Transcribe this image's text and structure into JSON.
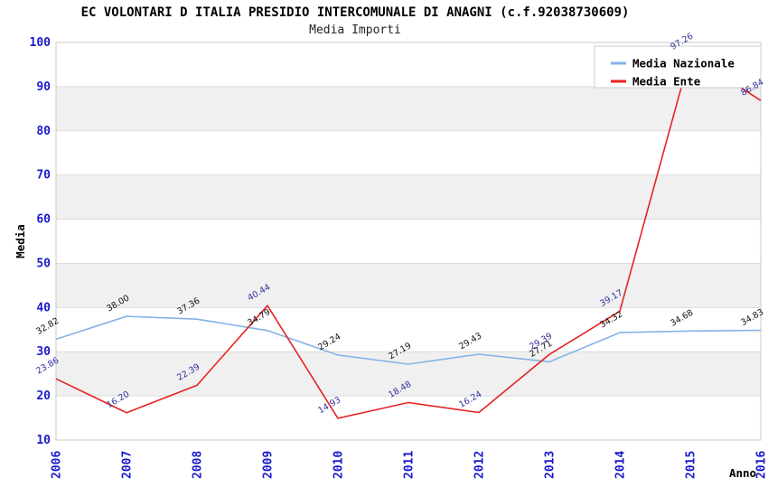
{
  "title": "EC VOLONTARI D ITALIA PRESIDIO INTERCOMUNALE DI ANAGNI (c.f.92038730609)",
  "subtitle": "Media Importi",
  "chart_data": {
    "type": "line",
    "title": "EC VOLONTARI D ITALIA PRESIDIO INTERCOMUNALE DI ANAGNI (c.f.92038730609)",
    "subtitle": "Media Importi",
    "xlabel": "Anno",
    "ylabel": "Media",
    "ylim": [
      10,
      100
    ],
    "y_ticks": [
      10,
      20,
      30,
      40,
      50,
      60,
      70,
      80,
      90,
      100
    ],
    "categories": [
      "2006",
      "2007",
      "2008",
      "2009",
      "2010",
      "2011",
      "2012",
      "2013",
      "2014",
      "2015",
      "2016"
    ],
    "series": [
      {
        "name": "Media Nazionale",
        "color": "#85b3e6",
        "label_color": "#111111",
        "values": [
          32.82,
          38.0,
          37.36,
          34.79,
          29.24,
          27.19,
          29.43,
          27.71,
          34.32,
          34.68,
          34.83
        ]
      },
      {
        "name": "Media Ente",
        "color": "#e62222",
        "label_color": "#2f2f9d",
        "values": [
          23.86,
          16.2,
          22.39,
          40.44,
          14.93,
          18.48,
          16.24,
          29.39,
          39.17,
          97.26,
          86.84
        ]
      }
    ],
    "legend_position": "top-right",
    "grid": "horizontal",
    "colors": {
      "tick_label": "#1a1acd",
      "axis_title": "#000000",
      "band_gray": "#f0f0f0",
      "band_white": "#ffffff",
      "grid_line": "#dcdcdc",
      "plot_border": "#c8c8c8",
      "legend_border": "#cccccc",
      "legend_bg": "#ffffff"
    }
  }
}
